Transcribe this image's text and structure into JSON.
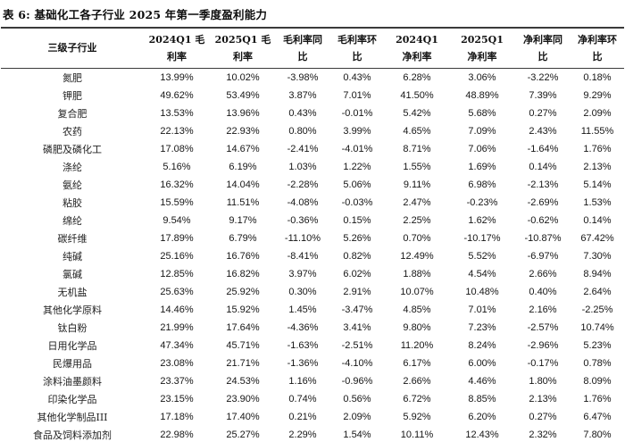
{
  "table": {
    "title": "表 6: 基础化工各子行业 2025 年第一季度盈利能力",
    "columns": [
      "三级子行业",
      "2024Q1 毛\n利率",
      "2025Q1 毛\n利率",
      "毛利率同\n比",
      "毛利率环\n比",
      "2024Q1\n净利率",
      "2025Q1\n净利率",
      "净利率同\n比",
      "净利率环\n比"
    ],
    "rows": [
      {
        "name": "氮肥",
        "values": [
          "13.99%",
          "10.02%",
          "-3.98%",
          "0.43%",
          "6.28%",
          "3.06%",
          "-3.22%",
          "0.18%"
        ]
      },
      {
        "name": "钾肥",
        "values": [
          "49.62%",
          "53.49%",
          "3.87%",
          "7.01%",
          "41.50%",
          "48.89%",
          "7.39%",
          "9.29%"
        ]
      },
      {
        "name": "复合肥",
        "values": [
          "13.53%",
          "13.96%",
          "0.43%",
          "-0.01%",
          "5.42%",
          "5.68%",
          "0.27%",
          "2.09%"
        ]
      },
      {
        "name": "农药",
        "values": [
          "22.13%",
          "22.93%",
          "0.80%",
          "3.99%",
          "4.65%",
          "7.09%",
          "2.43%",
          "11.55%"
        ]
      },
      {
        "name": "磷肥及磷化工",
        "values": [
          "17.08%",
          "14.67%",
          "-2.41%",
          "-4.01%",
          "8.71%",
          "7.06%",
          "-1.64%",
          "1.76%"
        ]
      },
      {
        "name": "涤纶",
        "values": [
          "5.16%",
          "6.19%",
          "1.03%",
          "1.22%",
          "1.55%",
          "1.69%",
          "0.14%",
          "2.13%"
        ]
      },
      {
        "name": "氨纶",
        "values": [
          "16.32%",
          "14.04%",
          "-2.28%",
          "5.06%",
          "9.11%",
          "6.98%",
          "-2.13%",
          "5.14%"
        ]
      },
      {
        "name": "粘胶",
        "values": [
          "15.59%",
          "11.51%",
          "-4.08%",
          "-0.03%",
          "2.47%",
          "-0.23%",
          "-2.69%",
          "1.53%"
        ]
      },
      {
        "name": "绵纶",
        "values": [
          "9.54%",
          "9.17%",
          "-0.36%",
          "0.15%",
          "2.25%",
          "1.62%",
          "-0.62%",
          "0.14%"
        ]
      },
      {
        "name": "碳纤维",
        "values": [
          "17.89%",
          "6.79%",
          "-11.10%",
          "5.26%",
          "0.70%",
          "-10.17%",
          "-10.87%",
          "67.42%"
        ]
      },
      {
        "name": "纯碱",
        "values": [
          "25.16%",
          "16.76%",
          "-8.41%",
          "0.82%",
          "12.49%",
          "5.52%",
          "-6.97%",
          "7.30%"
        ]
      },
      {
        "name": "氯碱",
        "values": [
          "12.85%",
          "16.82%",
          "3.97%",
          "6.02%",
          "1.88%",
          "4.54%",
          "2.66%",
          "8.94%"
        ]
      },
      {
        "name": "无机盐",
        "values": [
          "25.63%",
          "25.92%",
          "0.30%",
          "2.91%",
          "10.07%",
          "10.48%",
          "0.40%",
          "2.64%"
        ]
      },
      {
        "name": "其他化学原料",
        "values": [
          "14.46%",
          "15.92%",
          "1.45%",
          "-3.47%",
          "4.85%",
          "7.01%",
          "2.16%",
          "-2.25%"
        ]
      },
      {
        "name": "钛白粉",
        "values": [
          "21.99%",
          "17.64%",
          "-4.36%",
          "3.41%",
          "9.80%",
          "7.23%",
          "-2.57%",
          "10.74%"
        ]
      },
      {
        "name": "日用化学品",
        "values": [
          "47.34%",
          "45.71%",
          "-1.63%",
          "-2.51%",
          "11.20%",
          "8.24%",
          "-2.96%",
          "5.23%"
        ]
      },
      {
        "name": "民爆用品",
        "values": [
          "23.08%",
          "21.71%",
          "-1.36%",
          "-4.10%",
          "6.17%",
          "6.00%",
          "-0.17%",
          "0.78%"
        ]
      },
      {
        "name": "涂料油墨颜料",
        "values": [
          "23.37%",
          "24.53%",
          "1.16%",
          "-0.96%",
          "2.66%",
          "4.46%",
          "1.80%",
          "8.09%"
        ]
      },
      {
        "name": "印染化学品",
        "values": [
          "23.15%",
          "23.90%",
          "0.74%",
          "0.56%",
          "6.72%",
          "8.85%",
          "2.13%",
          "1.76%"
        ]
      },
      {
        "name": "其他化学制品III",
        "values": [
          "17.18%",
          "17.40%",
          "0.21%",
          "2.09%",
          "5.92%",
          "6.20%",
          "0.27%",
          "6.47%"
        ]
      },
      {
        "name": "食品及饲料添加剂",
        "values": [
          "22.98%",
          "25.27%",
          "2.29%",
          "1.54%",
          "10.11%",
          "12.43%",
          "2.32%",
          "7.80%"
        ]
      }
    ]
  }
}
